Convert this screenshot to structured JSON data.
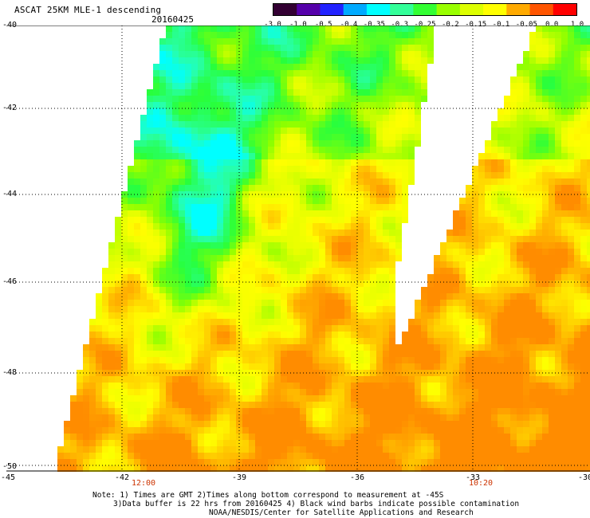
{
  "header": {
    "title": "ASCAT 25KM MLE-1 descending",
    "date": "20160425"
  },
  "colorbar": {
    "labels": [
      "-3.0",
      "-1.0",
      "-0.5",
      "-0.4",
      "-0.35",
      "-0.3",
      "-0.25",
      "-0.2",
      "-0.15",
      "-0.1",
      "-0.05",
      "0.0",
      "1.0"
    ],
    "colors": [
      "#330033",
      "#5500aa",
      "#2222ff",
      "#00aaff",
      "#00ffff",
      "#33ff99",
      "#33ff33",
      "#99ff00",
      "#ddff00",
      "#ffff00",
      "#ffaa00",
      "#ff5500",
      "#ff0000"
    ]
  },
  "axes": {
    "lat_labels": [
      "-40",
      "-42",
      "-44",
      "-46",
      "-48",
      "-50"
    ],
    "lon_labels": [
      "-45",
      "-42",
      "-39",
      "-36",
      "-33",
      "-30"
    ],
    "lat_range": [
      -50,
      -40
    ],
    "lon_range": [
      -45,
      -30
    ]
  },
  "time_labels": {
    "left": "12:00",
    "right": "10:20"
  },
  "notes": {
    "line1": "Note: 1) Times are GMT 2)Times along bottom correspond to measurement at -45S",
    "line2": "3)Data buffer is 22 hrs from 20160425 4) Black wind barbs indicate possible contamination",
    "line3": "NOAA/NESDIS/Center for Satellite Applications and Research"
  }
}
